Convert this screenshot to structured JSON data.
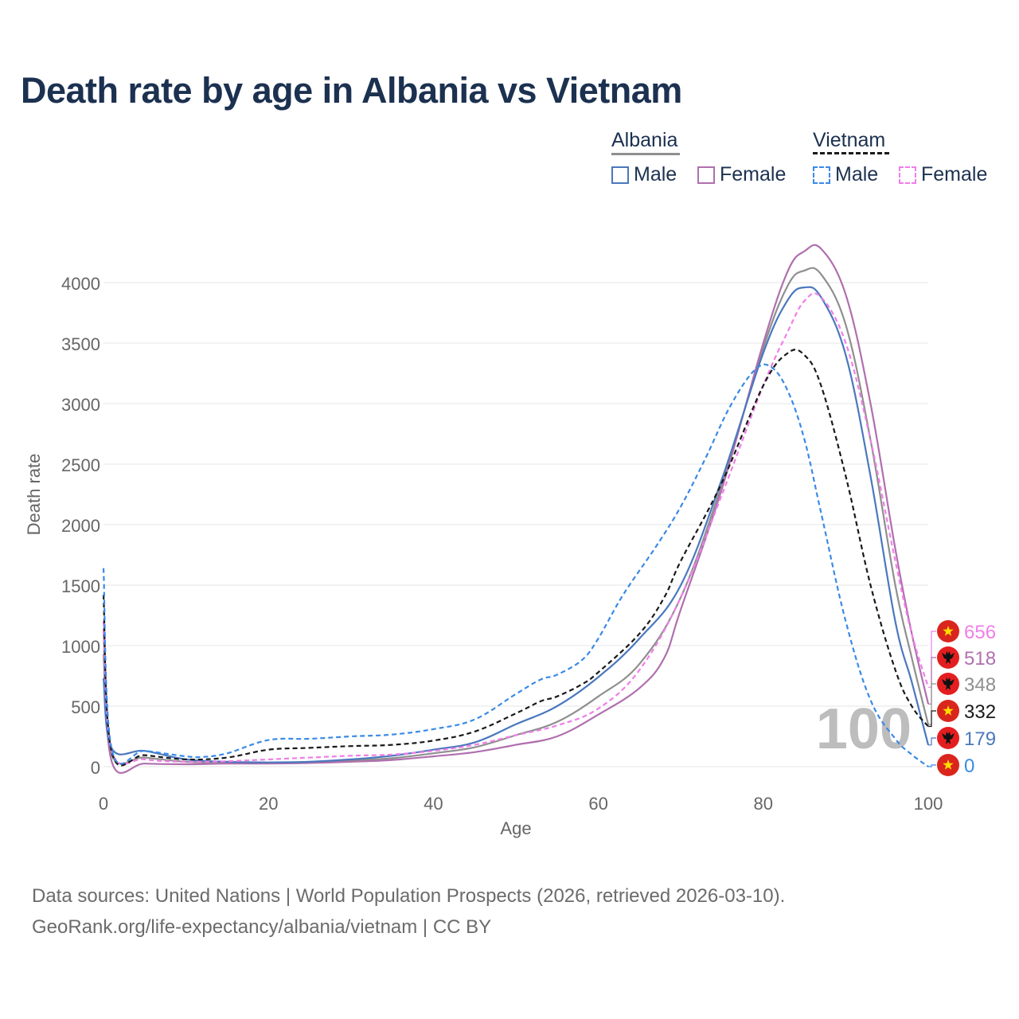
{
  "title": "Death rate by age in Albania vs Vietnam",
  "legend": {
    "groups": [
      {
        "name": "Albania",
        "line_style": "solid",
        "line_color": "#8f8f8f",
        "items": [
          {
            "label": "Male",
            "color": "#4a78bd"
          },
          {
            "label": "Female",
            "color": "#b06fae"
          }
        ]
      },
      {
        "name": "Vietnam",
        "line_style": "dashed",
        "line_color": "#1a1a1a",
        "items": [
          {
            "label": "Male",
            "color": "#3a8ae6"
          },
          {
            "label": "Female",
            "color": "#f07ee8"
          }
        ]
      }
    ]
  },
  "source": {
    "line1": "Data sources: United Nations | World Population Prospects (2026, retrieved 2026-03-10).",
    "line2": "GeoRank.org/life-expectancy/albania/vietnam | CC BY"
  },
  "chart_data": {
    "type": "line",
    "title": "Death rate by age in Albania vs Vietnam",
    "xlabel": "Age",
    "ylabel": "Death rate",
    "xlim": [
      0,
      100
    ],
    "ylim": [
      0,
      4300
    ],
    "x_ticks": [
      0,
      20,
      40,
      60,
      80,
      100
    ],
    "y_ticks": [
      0,
      500,
      1000,
      1500,
      2000,
      2500,
      3000,
      3500,
      4000
    ],
    "grid": true,
    "age_watermark": "100",
    "series": [
      {
        "name": "Albania Male",
        "country": "Albania",
        "sex": "Male",
        "color": "#4a78bd",
        "dashed": false,
        "flag": "albania",
        "end_label": "179",
        "points": [
          [
            0,
            730
          ],
          [
            1,
            150
          ],
          [
            5,
            130
          ],
          [
            10,
            60
          ],
          [
            15,
            40
          ],
          [
            20,
            35
          ],
          [
            25,
            40
          ],
          [
            30,
            60
          ],
          [
            35,
            90
          ],
          [
            40,
            140
          ],
          [
            45,
            200
          ],
          [
            50,
            350
          ],
          [
            55,
            500
          ],
          [
            60,
            740
          ],
          [
            65,
            1060
          ],
          [
            70,
            1500
          ],
          [
            75,
            2380
          ],
          [
            80,
            3420
          ],
          [
            83,
            3860
          ],
          [
            85,
            3960
          ],
          [
            87,
            3880
          ],
          [
            90,
            3400
          ],
          [
            93,
            2400
          ],
          [
            96,
            1200
          ],
          [
            98,
            700
          ],
          [
            100,
            179
          ]
        ]
      },
      {
        "name": "Albania Female",
        "country": "Albania",
        "sex": "Female",
        "color": "#b06fae",
        "dashed": false,
        "flag": "albania",
        "end_label": "518",
        "points": [
          [
            0,
            1140
          ],
          [
            1,
            40
          ],
          [
            5,
            25
          ],
          [
            10,
            20
          ],
          [
            15,
            25
          ],
          [
            20,
            25
          ],
          [
            25,
            30
          ],
          [
            30,
            40
          ],
          [
            35,
            55
          ],
          [
            40,
            85
          ],
          [
            45,
            120
          ],
          [
            50,
            180
          ],
          [
            55,
            250
          ],
          [
            60,
            430
          ],
          [
            65,
            650
          ],
          [
            68,
            900
          ],
          [
            70,
            1300
          ],
          [
            75,
            2300
          ],
          [
            80,
            3500
          ],
          [
            83,
            4100
          ],
          [
            85,
            4260
          ],
          [
            87,
            4280
          ],
          [
            90,
            3900
          ],
          [
            93,
            3000
          ],
          [
            96,
            1800
          ],
          [
            98,
            1100
          ],
          [
            100,
            518
          ]
        ]
      },
      {
        "name": "Albania Total",
        "country": "Albania",
        "sex": "Total",
        "color": "#8f8f8f",
        "dashed": false,
        "flag": "albania",
        "end_label": "348",
        "points": [
          [
            0,
            930
          ],
          [
            1,
            95
          ],
          [
            5,
            75
          ],
          [
            10,
            40
          ],
          [
            15,
            30
          ],
          [
            20,
            30
          ],
          [
            25,
            35
          ],
          [
            30,
            50
          ],
          [
            35,
            70
          ],
          [
            40,
            110
          ],
          [
            45,
            160
          ],
          [
            50,
            260
          ],
          [
            55,
            370
          ],
          [
            60,
            580
          ],
          [
            65,
            850
          ],
          [
            70,
            1400
          ],
          [
            75,
            2340
          ],
          [
            80,
            3460
          ],
          [
            83,
            3980
          ],
          [
            85,
            4100
          ],
          [
            87,
            4070
          ],
          [
            90,
            3650
          ],
          [
            93,
            2700
          ],
          [
            96,
            1500
          ],
          [
            98,
            900
          ],
          [
            100,
            348
          ]
        ]
      },
      {
        "name": "Vietnam Male",
        "country": "Vietnam",
        "sex": "Male",
        "color": "#3a8ae6",
        "dashed": true,
        "flag": "vietnam",
        "end_label": "0",
        "points": [
          [
            0,
            1640
          ],
          [
            1,
            145
          ],
          [
            5,
            130
          ],
          [
            10,
            85
          ],
          [
            12,
            80
          ],
          [
            15,
            110
          ],
          [
            20,
            220
          ],
          [
            25,
            230
          ],
          [
            30,
            250
          ],
          [
            35,
            265
          ],
          [
            40,
            310
          ],
          [
            45,
            390
          ],
          [
            50,
            600
          ],
          [
            53,
            720
          ],
          [
            55,
            760
          ],
          [
            58,
            880
          ],
          [
            60,
            1060
          ],
          [
            63,
            1420
          ],
          [
            67,
            1820
          ],
          [
            70,
            2150
          ],
          [
            73,
            2550
          ],
          [
            76,
            2980
          ],
          [
            79,
            3280
          ],
          [
            81,
            3300
          ],
          [
            83,
            3100
          ],
          [
            85,
            2700
          ],
          [
            87,
            2100
          ],
          [
            90,
            1200
          ],
          [
            93,
            550
          ],
          [
            96,
            230
          ],
          [
            98,
            100
          ],
          [
            100,
            0
          ]
        ]
      },
      {
        "name": "Vietnam Female",
        "country": "Vietnam",
        "sex": "Female",
        "color": "#f07ee8",
        "dashed": true,
        "flag": "vietnam",
        "end_label": "656",
        "points": [
          [
            0,
            1200
          ],
          [
            1,
            130
          ],
          [
            5,
            60
          ],
          [
            10,
            40
          ],
          [
            15,
            45
          ],
          [
            20,
            60
          ],
          [
            25,
            75
          ],
          [
            30,
            90
          ],
          [
            35,
            100
          ],
          [
            40,
            130
          ],
          [
            45,
            180
          ],
          [
            50,
            260
          ],
          [
            55,
            340
          ],
          [
            60,
            480
          ],
          [
            65,
            800
          ],
          [
            70,
            1400
          ],
          [
            75,
            2250
          ],
          [
            80,
            3150
          ],
          [
            83,
            3600
          ],
          [
            85,
            3850
          ],
          [
            87,
            3880
          ],
          [
            90,
            3500
          ],
          [
            93,
            2700
          ],
          [
            96,
            1700
          ],
          [
            98,
            1100
          ],
          [
            100,
            656
          ]
        ]
      },
      {
        "name": "Vietnam Total",
        "country": "Vietnam",
        "sex": "Total",
        "color": "#1a1a1a",
        "dashed": true,
        "flag": "vietnam",
        "end_label": "332",
        "points": [
          [
            0,
            1420
          ],
          [
            1,
            120
          ],
          [
            5,
            95
          ],
          [
            10,
            60
          ],
          [
            15,
            75
          ],
          [
            20,
            140
          ],
          [
            25,
            155
          ],
          [
            30,
            170
          ],
          [
            35,
            180
          ],
          [
            40,
            215
          ],
          [
            45,
            290
          ],
          [
            50,
            440
          ],
          [
            53,
            540
          ],
          [
            55,
            580
          ],
          [
            58,
            680
          ],
          [
            60,
            780
          ],
          [
            65,
            1100
          ],
          [
            68,
            1400
          ],
          [
            70,
            1700
          ],
          [
            75,
            2350
          ],
          [
            80,
            3150
          ],
          [
            83,
            3420
          ],
          [
            85,
            3400
          ],
          [
            87,
            3150
          ],
          [
            90,
            2400
          ],
          [
            93,
            1500
          ],
          [
            96,
            800
          ],
          [
            98,
            500
          ],
          [
            100,
            332
          ]
        ]
      }
    ],
    "end_labels_order": [
      "Vietnam Female",
      "Albania Female",
      "Albania Total",
      "Vietnam Total",
      "Albania Male",
      "Vietnam Male"
    ]
  }
}
